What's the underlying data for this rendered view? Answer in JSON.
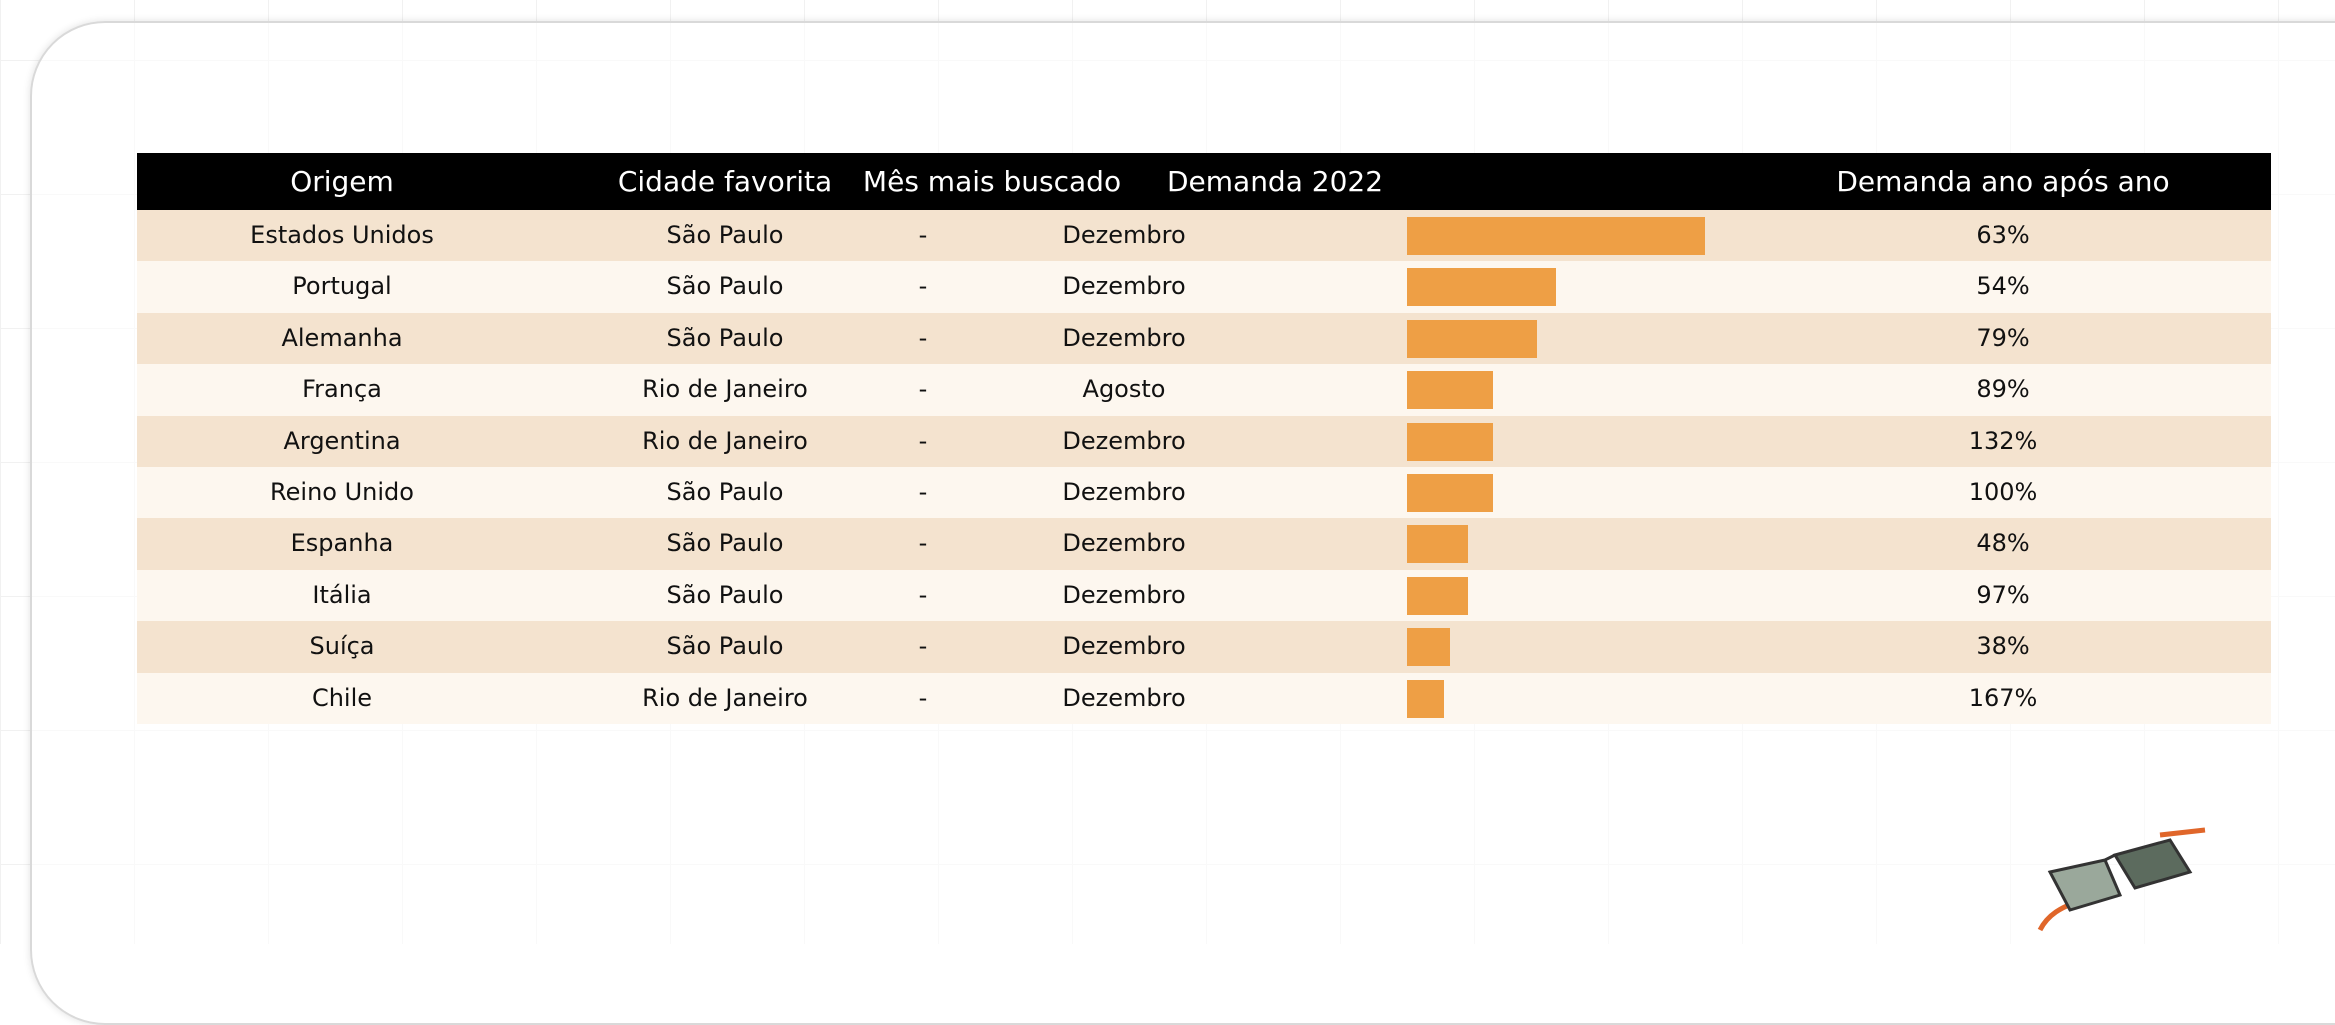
{
  "table": {
    "headers": [
      "Origem",
      "Cidade favorita",
      "Mês mais buscado",
      "Demanda 2022",
      "Demanda ano após ano"
    ],
    "rows": [
      {
        "origin": "Estados Unidos",
        "city": "São Paulo",
        "dash": "-",
        "month": "Dezembro",
        "demand_2022": 100,
        "yoy": "63%"
      },
      {
        "origin": "Portugal",
        "city": "São Paulo",
        "dash": "-",
        "month": "Dezembro",
        "demand_2022": 50,
        "yoy": "54%"
      },
      {
        "origin": "Alemanha",
        "city": "São Paulo",
        "dash": "-",
        "month": "Dezembro",
        "demand_2022": 43.5,
        "yoy": "79%"
      },
      {
        "origin": "França",
        "city": "Rio de Janeiro",
        "dash": "-",
        "month": "Agosto",
        "demand_2022": 29,
        "yoy": "89%"
      },
      {
        "origin": "Argentina",
        "city": "Rio de Janeiro",
        "dash": "-",
        "month": "Dezembro",
        "demand_2022": 29,
        "yoy": "132%"
      },
      {
        "origin": "Reino Unido",
        "city": "São Paulo",
        "dash": "-",
        "month": "Dezembro",
        "demand_2022": 29,
        "yoy": "100%"
      },
      {
        "origin": "Espanha",
        "city": "São Paulo",
        "dash": "-",
        "month": "Dezembro",
        "demand_2022": 20.5,
        "yoy": "48%"
      },
      {
        "origin": "Itália",
        "city": "São Paulo",
        "dash": "-",
        "month": "Dezembro",
        "demand_2022": 20.5,
        "yoy": "97%"
      },
      {
        "origin": "Suíça",
        "city": "São Paulo",
        "dash": "-",
        "month": "Dezembro",
        "demand_2022": 14.5,
        "yoy": "38%"
      },
      {
        "origin": "Chile",
        "city": "Rio de Janeiro",
        "dash": "-",
        "month": "Dezembro",
        "demand_2022": 12.5,
        "yoy": "167%"
      }
    ]
  }
}
